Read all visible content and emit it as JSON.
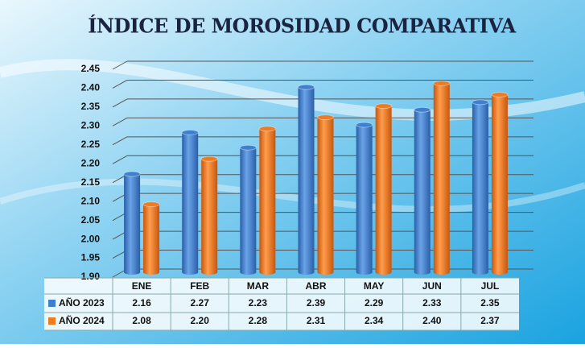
{
  "chart_data": {
    "type": "bar",
    "title": "ÍNDICE DE MOROSIDAD COMPARATIVA",
    "categories": [
      "ENE",
      "FEB",
      "MAR",
      "ABR",
      "MAY",
      "JUN",
      "JUL"
    ],
    "series": [
      {
        "name": "AÑO 2023",
        "color": "#3f7fd0",
        "values": [
          2.16,
          2.27,
          2.23,
          2.39,
          2.29,
          2.33,
          2.35
        ],
        "value_labels": [
          "2.16",
          "2.27",
          "2.23",
          "2.39",
          "2.29",
          "2.33",
          "2.35"
        ]
      },
      {
        "name": "AÑO 2024",
        "color": "#f07a1e",
        "values": [
          2.08,
          2.2,
          2.28,
          2.31,
          2.34,
          2.4,
          2.37
        ],
        "value_labels": [
          "2.08",
          "2.20",
          "2.28",
          "2.31",
          "2.34",
          "2.40",
          "2.37"
        ]
      }
    ],
    "ylim": [
      1.9,
      2.45
    ],
    "yticks": [
      {
        "value": 1.9,
        "label": "1.90"
      },
      1.95,
      {
        "value": 2.0,
        "label": "2.00"
      },
      2.05,
      {
        "value": 2.1,
        "label": "2.10"
      },
      2.15,
      {
        "value": 2.2,
        "label": "2.20"
      },
      2.25,
      {
        "value": 2.3,
        "label": "2.30"
      },
      2.35,
      {
        "value": 2.4,
        "label": "2.40"
      },
      2.45
    ],
    "grid": true
  }
}
